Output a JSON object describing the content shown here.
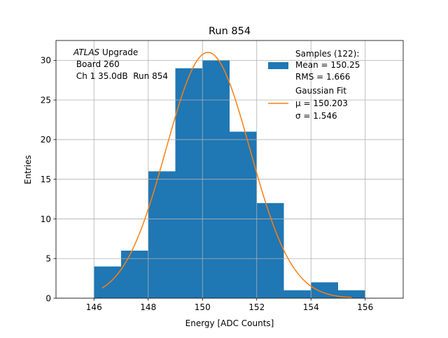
{
  "chart_data": {
    "type": "bar",
    "title": "Run 854",
    "xlabel": "Energy [ADC Counts]",
    "ylabel": "Entries",
    "xlim": [
      144.6,
      157.4
    ],
    "ylim": [
      0,
      32.5
    ],
    "grid": true,
    "xticks": [
      146,
      148,
      150,
      152,
      154,
      156
    ],
    "yticks": [
      0,
      5,
      10,
      15,
      20,
      25,
      30
    ],
    "histogram": {
      "name": "Samples (122):",
      "color": "#1f77b4",
      "bin_edges": [
        146,
        147,
        148,
        149,
        150,
        151,
        152,
        153,
        154,
        155,
        156
      ],
      "counts": [
        4,
        6,
        16,
        29,
        30,
        21,
        12,
        1,
        2,
        1
      ]
    },
    "fit": {
      "name": "Gaussian Fit",
      "color": "#ff7f0e",
      "mu": 150.203,
      "sigma": 1.546,
      "amplitude": 31,
      "x_range": [
        146.3,
        155.5
      ]
    },
    "legend": {
      "placement": "top-right",
      "hist_lines": [
        "Samples (122):",
        "Mean = 150.25",
        "RMS = 1.666"
      ],
      "fit_lines": [
        "Gaussian Fit",
        "μ = 150.203",
        "σ = 1.546"
      ]
    },
    "annotation": {
      "line1_italic": "ATLAS",
      "line1_rest": " Upgrade",
      "line2": " Board 260",
      "line3": " Ch 1 35.0dB  Run 854"
    }
  }
}
